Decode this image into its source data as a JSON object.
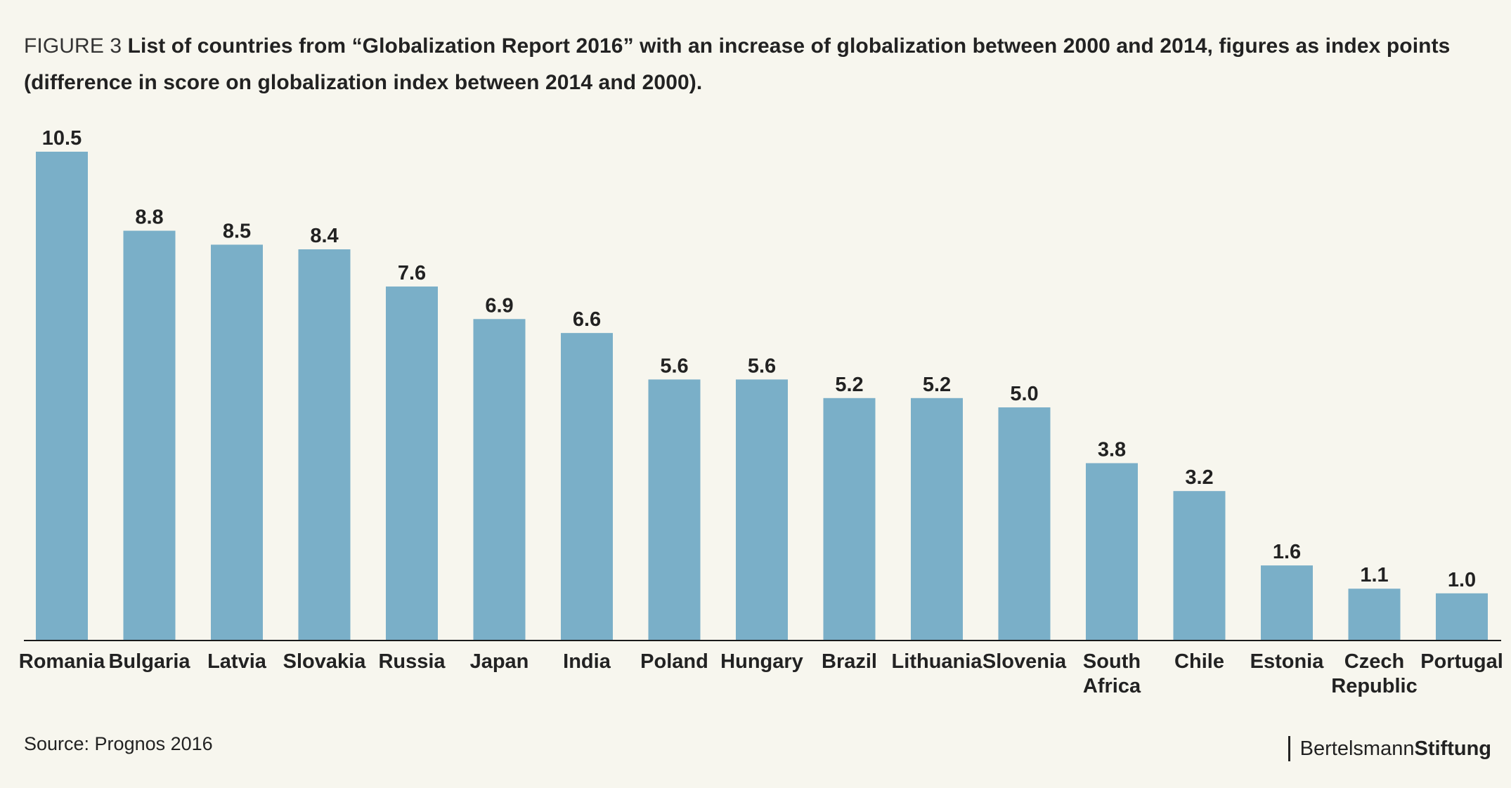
{
  "caption": {
    "figure_label": "FIGURE 3",
    "title": "List of countries from “Globalization Report 2016” with an increase of globalization between 2000 and 2014, figures as index points (difference in score on globalization index between 2014 and 2000)."
  },
  "source": "Source: Prognos 2016",
  "brand": {
    "part1": "Bertelsmann",
    "part2": "Stiftung"
  },
  "colors": {
    "bar": "#7aafc8",
    "background": "#f7f6ee"
  },
  "chart_data": {
    "type": "bar",
    "categories": [
      "Romania",
      "Bulgaria",
      "Latvia",
      "Slovakia",
      "Russia",
      "Japan",
      "India",
      "Poland",
      "Hungary",
      "Brazil",
      "Lithuania",
      "Slovenia",
      "South Africa",
      "Chile",
      "Estonia",
      "Czech Republic",
      "Portugal"
    ],
    "category_lines": [
      [
        "Romania"
      ],
      [
        "Bulgaria"
      ],
      [
        "Latvia"
      ],
      [
        "Slovakia"
      ],
      [
        "Russia"
      ],
      [
        "Japan"
      ],
      [
        "India"
      ],
      [
        "Poland"
      ],
      [
        "Hungary"
      ],
      [
        "Brazil"
      ],
      [
        "Lithuania"
      ],
      [
        "Slovenia"
      ],
      [
        "South",
        "Africa"
      ],
      [
        "Chile"
      ],
      [
        "Estonia"
      ],
      [
        "Czech",
        "Republic"
      ],
      [
        "Portugal"
      ]
    ],
    "values": [
      10.5,
      8.8,
      8.5,
      8.4,
      7.6,
      6.9,
      6.6,
      5.6,
      5.6,
      5.2,
      5.2,
      5.0,
      3.8,
      3.2,
      1.6,
      1.1,
      1.0
    ],
    "value_labels": [
      "10.5",
      "8.8",
      "8.5",
      "8.4",
      "7.6",
      "6.9",
      "6.6",
      "5.6",
      "5.6",
      "5.2",
      "5.2",
      "5.0",
      "3.8",
      "3.2",
      "1.6",
      "1.1",
      "1.0"
    ],
    "ylim": [
      0,
      10.5
    ],
    "grid": false,
    "legend": "none"
  }
}
